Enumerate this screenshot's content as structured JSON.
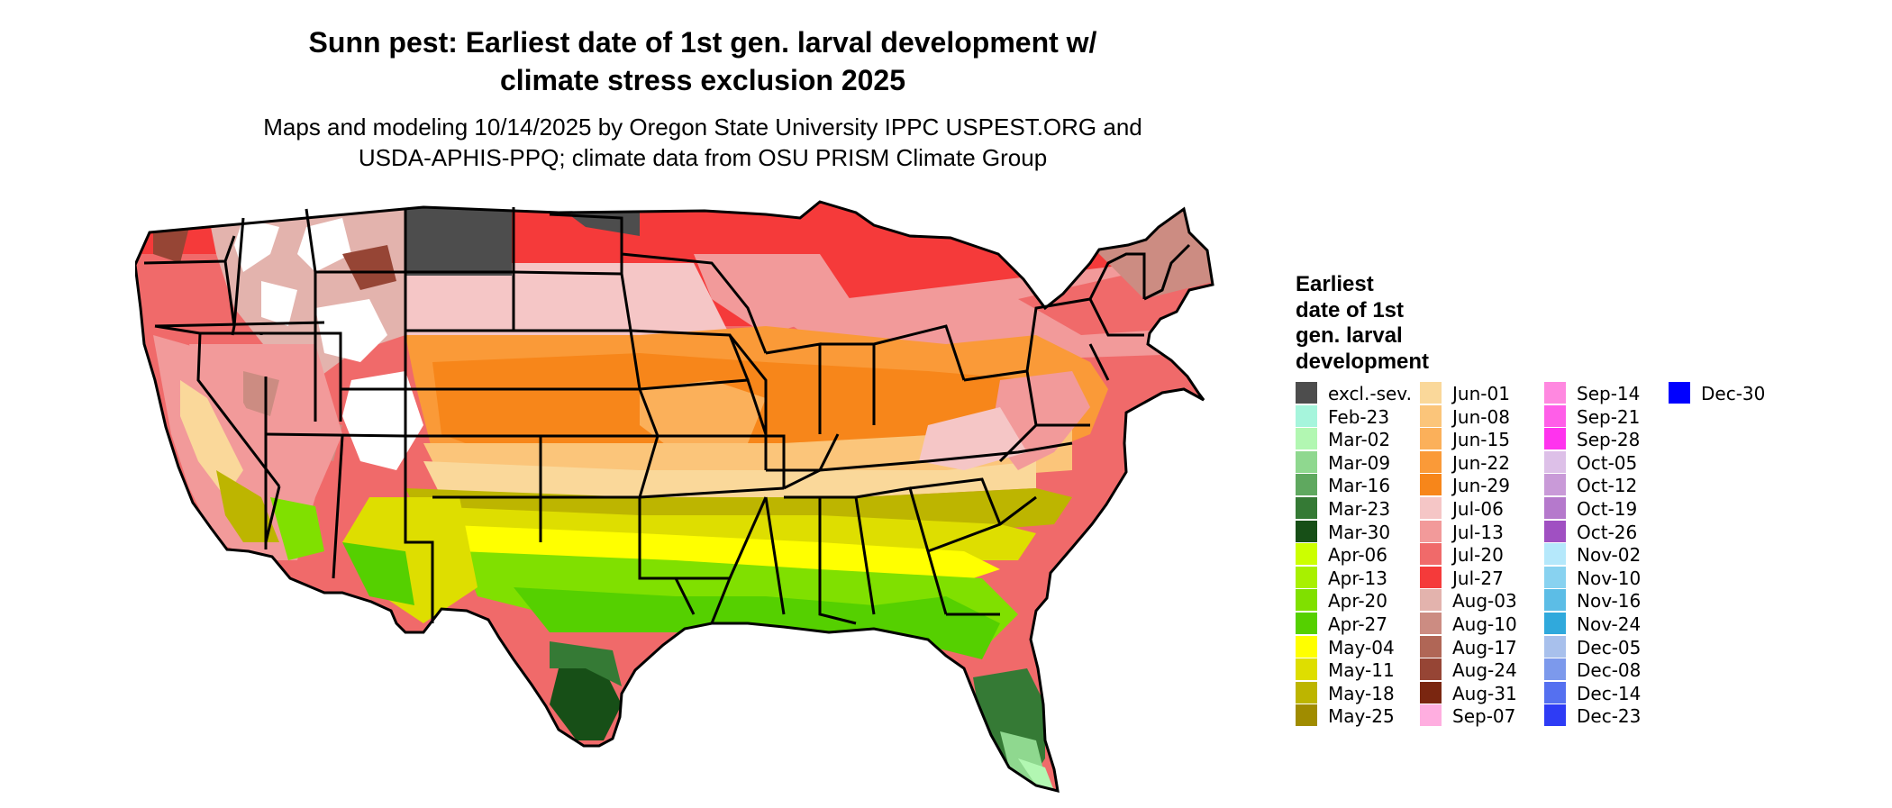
{
  "title_line1": "Sunn pest: Earliest date of 1st gen. larval development w/",
  "title_line2": "climate stress exclusion 2025",
  "subtitle_line1": "Maps and modeling 10/14/2025 by Oregon State University IPPC USPEST.ORG and",
  "subtitle_line2": "USDA-APHIS-PPQ; climate data from OSU PRISM Climate Group",
  "legend": {
    "title_lines": [
      "Earliest",
      "date of 1st",
      "gen. larval",
      "development"
    ],
    "items": [
      {
        "label": "excl.-sev.",
        "color": "#4d4d4d"
      },
      {
        "label": "Feb-23",
        "color": "#a6f5dc"
      },
      {
        "label": "Mar-02",
        "color": "#b2f7b2"
      },
      {
        "label": "Mar-09",
        "color": "#8fd88f"
      },
      {
        "label": "Mar-16",
        "color": "#5fa85f"
      },
      {
        "label": "Mar-23",
        "color": "#357a35"
      },
      {
        "label": "Mar-30",
        "color": "#174f17"
      },
      {
        "label": "Apr-06",
        "color": "#ccff00"
      },
      {
        "label": "Apr-13",
        "color": "#a8f000"
      },
      {
        "label": "Apr-20",
        "color": "#80e000"
      },
      {
        "label": "Apr-27",
        "color": "#55d000"
      },
      {
        "label": "May-04",
        "color": "#ffff00"
      },
      {
        "label": "May-11",
        "color": "#dede00"
      },
      {
        "label": "May-18",
        "color": "#bdb500"
      },
      {
        "label": "May-25",
        "color": "#a08c00"
      },
      {
        "label": "Jun-01",
        "color": "#fad89a"
      },
      {
        "label": "Jun-08",
        "color": "#fbc57a"
      },
      {
        "label": "Jun-15",
        "color": "#fbb05a"
      },
      {
        "label": "Jun-22",
        "color": "#fa9a38"
      },
      {
        "label": "Jun-29",
        "color": "#f7861a"
      },
      {
        "label": "Jul-06",
        "color": "#f5c6c6"
      },
      {
        "label": "Jul-13",
        "color": "#f29a9a"
      },
      {
        "label": "Jul-20",
        "color": "#f06a6a"
      },
      {
        "label": "Jul-27",
        "color": "#f53a3a"
      },
      {
        "label": "Aug-03",
        "color": "#e3b3ad"
      },
      {
        "label": "Aug-10",
        "color": "#cc8c82"
      },
      {
        "label": "Aug-17",
        "color": "#b06656"
      },
      {
        "label": "Aug-24",
        "color": "#964535"
      },
      {
        "label": "Aug-31",
        "color": "#7a2610"
      },
      {
        "label": "Sep-07",
        "color": "#ffaee0"
      },
      {
        "label": "Sep-14",
        "color": "#ff88e0"
      },
      {
        "label": "Sep-21",
        "color": "#ff5ee8"
      },
      {
        "label": "Sep-28",
        "color": "#ff33ee"
      },
      {
        "label": "Oct-05",
        "color": "#ddc0e8"
      },
      {
        "label": "Oct-12",
        "color": "#c99ad8"
      },
      {
        "label": "Oct-19",
        "color": "#b579cc"
      },
      {
        "label": "Oct-26",
        "color": "#a050c2"
      },
      {
        "label": "Nov-02",
        "color": "#b5e8fb"
      },
      {
        "label": "Nov-10",
        "color": "#88d2f0"
      },
      {
        "label": "Nov-16",
        "color": "#5cbde6"
      },
      {
        "label": "Nov-24",
        "color": "#30a9dc"
      },
      {
        "label": "Dec-05",
        "color": "#a8c0ec"
      },
      {
        "label": "Dec-08",
        "color": "#7c99ec"
      },
      {
        "label": "Dec-14",
        "color": "#5570f0"
      },
      {
        "label": "Dec-23",
        "color": "#2e3cf5"
      },
      {
        "label": "Dec-30",
        "color": "#0000ff"
      }
    ]
  }
}
